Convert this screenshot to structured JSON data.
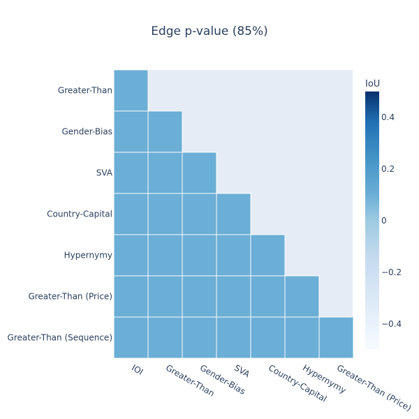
{
  "chart_data": {
    "type": "heatmap",
    "title": "Edge p-value (85%)",
    "x_categories": [
      "IOI",
      "Greater-Than",
      "Gender-Bias",
      "SVA",
      "Country-Capital",
      "Hypernymy",
      "Greater-Than (Price)"
    ],
    "y_categories": [
      "Greater-Than",
      "Gender-Bias",
      "SVA",
      "Country-Capital",
      "Hypernymy",
      "Greater-Than (Price)",
      "Greater-Than (Sequence)"
    ],
    "z": [
      [
        0,
        null,
        null,
        null,
        null,
        null,
        null
      ],
      [
        0,
        0,
        null,
        null,
        null,
        null,
        null
      ],
      [
        0,
        0,
        0,
        null,
        null,
        null,
        null
      ],
      [
        0,
        0,
        0,
        0,
        null,
        null,
        null
      ],
      [
        0,
        0,
        0,
        0,
        0,
        null,
        null
      ],
      [
        0,
        0,
        0,
        0,
        0,
        0,
        null
      ],
      [
        0,
        0,
        0,
        0,
        0,
        0,
        0
      ]
    ],
    "colorscale": "Blues",
    "zlim": [
      -0.5,
      0.5
    ],
    "colorbar": {
      "title": "IoU",
      "tickvals": [
        0.4,
        0.2,
        0,
        -0.2,
        -0.4
      ],
      "ticktext": [
        "0.4",
        "0.2",
        "0",
        "−0.2",
        "−0.4"
      ]
    },
    "cell_color": "#6baed6",
    "plot_bg_color": "#e5ecf6",
    "text_color": "#2a3f5f",
    "grid": false,
    "legend": "right"
  }
}
